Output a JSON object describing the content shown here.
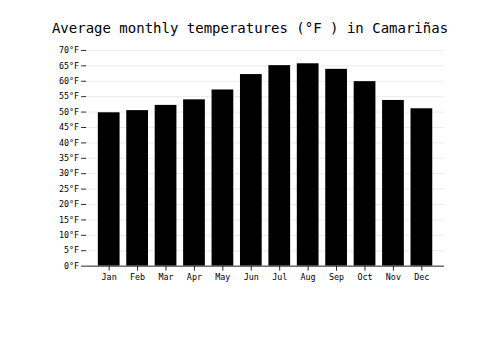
{
  "chart_data": {
    "type": "bar",
    "title": "Average monthly temperatures (°F ) in Camariñas",
    "categories": [
      "Jan",
      "Feb",
      "Mar",
      "Apr",
      "May",
      "Jun",
      "Jul",
      "Aug",
      "Sep",
      "Oct",
      "Nov",
      "Dec"
    ],
    "values": [
      49.8,
      50.5,
      52.2,
      54.0,
      57.2,
      62.2,
      65.1,
      65.7,
      63.9,
      59.9,
      53.8,
      51.1
    ],
    "ylim": [
      0,
      70
    ],
    "yticks": [
      {
        "value": 0,
        "label": "0°F"
      },
      {
        "value": 5,
        "label": "5°F"
      },
      {
        "value": 10,
        "label": "10°F"
      },
      {
        "value": 15,
        "label": "15°F"
      },
      {
        "value": 20,
        "label": "20°F"
      },
      {
        "value": 25,
        "label": "25°F"
      },
      {
        "value": 30,
        "label": "30°F"
      },
      {
        "value": 35,
        "label": "35°F"
      },
      {
        "value": 40,
        "label": "40°F"
      },
      {
        "value": 45,
        "label": "45°F"
      },
      {
        "value": 50,
        "label": "50°F"
      },
      {
        "value": 55,
        "label": "55°F"
      },
      {
        "value": 60,
        "label": "60°F"
      },
      {
        "value": 65,
        "label": "65°F"
      },
      {
        "value": 70,
        "label": "70°F"
      }
    ],
    "grid": true
  }
}
